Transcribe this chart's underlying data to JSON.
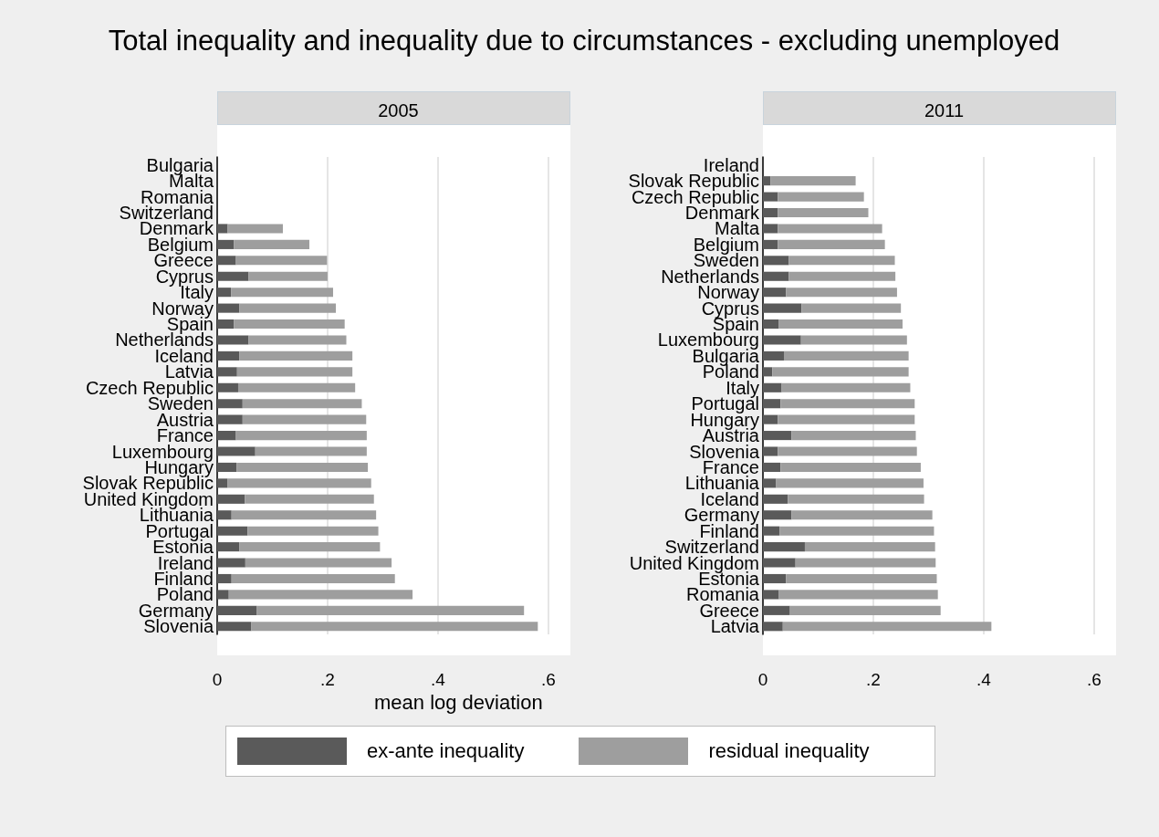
{
  "chart_data": [
    {
      "type": "bar",
      "title": "Total inequality and inequality due to circumstances - excluding unemployed",
      "subtitle": "2005",
      "xlabel": "mean log deviation",
      "orientation": "horizontal",
      "stacked": true,
      "grid": "x",
      "legend": "bottom",
      "categories": [
        "Bulgaria",
        "Malta",
        "Romania",
        "Switzerland",
        "Denmark",
        "Belgium",
        "Greece",
        "Cyprus",
        "Italy",
        "Norway",
        "Spain",
        "Netherlands",
        "Iceland",
        "Latvia",
        "Czech Republic",
        "Sweden",
        "Austria",
        "France",
        "Luxembourg",
        "Hungary",
        "Slovak Republic",
        "United Kingdom",
        "Lithuania",
        "Portugal",
        "Estonia",
        "Ireland",
        "Finland",
        "Poland",
        "Germany",
        "Slovenia"
      ],
      "xlim": [
        0,
        0.64
      ],
      "xticks": [
        0,
        {
          "value": 0.2,
          "label": ".2"
        },
        {
          "value": 0.4,
          "label": ".4"
        },
        {
          "value": 0.6,
          "label": ".6"
        }
      ],
      "series": [
        {
          "name": "ex-ante inequality",
          "color": "#5a5a5a",
          "values": [
            null,
            null,
            null,
            null,
            0.019,
            0.03,
            0.034,
            0.057,
            0.025,
            0.04,
            0.03,
            0.057,
            0.04,
            0.036,
            0.038,
            0.046,
            0.046,
            0.034,
            0.069,
            0.035,
            0.019,
            0.05,
            0.026,
            0.055,
            0.04,
            0.051,
            0.026,
            0.021,
            0.072,
            0.062
          ]
        },
        {
          "name": "residual inequality",
          "color": "#9e9e9e",
          "values": [
            null,
            null,
            null,
            null,
            0.1,
            0.137,
            0.165,
            0.143,
            0.185,
            0.175,
            0.201,
            0.177,
            0.205,
            0.209,
            0.212,
            0.216,
            0.224,
            0.237,
            0.202,
            0.238,
            0.26,
            0.234,
            0.262,
            0.237,
            0.255,
            0.265,
            0.296,
            0.333,
            0.484,
            0.519
          ]
        }
      ]
    },
    {
      "type": "bar",
      "subtitle": "2011",
      "orientation": "horizontal",
      "stacked": true,
      "grid": "x",
      "categories": [
        "Ireland",
        "Slovak Republic",
        "Czech Republic",
        "Denmark",
        "Malta",
        "Belgium",
        "Sweden",
        "Netherlands",
        "Norway",
        "Cyprus",
        "Spain",
        "Luxembourg",
        "Bulgaria",
        "Poland",
        "Italy",
        "Portugal",
        "Hungary",
        "Austria",
        "Slovenia",
        "France",
        "Lithuania",
        "Iceland",
        "Germany",
        "Finland",
        "Switzerland",
        "United Kingdom",
        "Estonia",
        "Romania",
        "Greece",
        "Latvia"
      ],
      "xlim": [
        0,
        0.64
      ],
      "xticks": [
        0,
        {
          "value": 0.2,
          "label": ".2"
        },
        {
          "value": 0.4,
          "label": ".4"
        },
        {
          "value": 0.6,
          "label": ".6"
        }
      ],
      "series": [
        {
          "color": "#5a5a5a",
          "values": [
            null,
            0.014,
            0.027,
            0.027,
            0.027,
            0.027,
            0.047,
            0.047,
            0.042,
            0.07,
            0.029,
            0.069,
            0.038,
            0.017,
            0.034,
            0.032,
            0.027,
            0.052,
            0.027,
            0.032,
            0.024,
            0.045,
            0.052,
            0.03,
            0.076,
            0.059,
            0.042,
            0.029,
            0.049,
            0.036
          ]
        },
        {
          "color": "#9e9e9e",
          "values": [
            null,
            0.154,
            0.156,
            0.164,
            0.189,
            0.194,
            0.192,
            0.193,
            0.201,
            0.18,
            0.224,
            0.192,
            0.226,
            0.247,
            0.233,
            0.243,
            0.248,
            0.225,
            0.252,
            0.254,
            0.267,
            0.247,
            0.255,
            0.28,
            0.236,
            0.254,
            0.273,
            0.288,
            0.273,
            0.378
          ]
        }
      ]
    }
  ]
}
